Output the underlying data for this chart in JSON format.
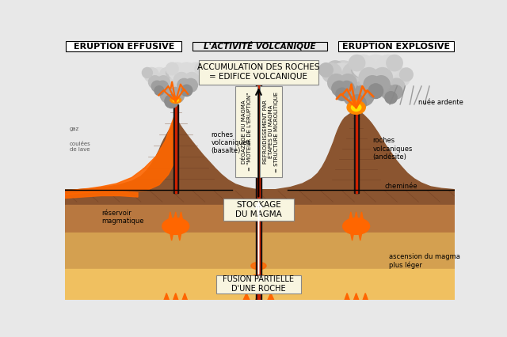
{
  "title": "L'ACTIVITÉ VOLCANIQUE",
  "title_left": "ERUPTION EFFUSIVE",
  "title_right": "ERUPTION EXPLOSIVE",
  "box_top": "ACCUMULATION DES ROCHES\n= EDIFICE VOLCANIQUE",
  "box_mid_left": "DÉGAZAGE DU MAGMA\n= \"MOTEUR DE L'ÉRUPTION\"",
  "box_mid_right": "REFROIDISSEMENT PAR\nÉTAPES DU MAGMA\n= STRUCTURE MICROLITIQUE",
  "box_stockage": "STOCKAGE\nDU MAGMA",
  "box_fusion": "FUSION PARTIELLE\nD'UNE ROCHE",
  "label_reservoir": "réservoir\nmagmatique",
  "label_roches_left": "roches\nvolcaniques\n(basalte)",
  "label_roches_right": "roches\nvolcaniques\n(andésite)",
  "label_cheminee": "cheminée",
  "label_nuee": "nuée ardente",
  "label_ascension": "ascension du magma\nplus léger",
  "label_coulees": "coulées\nde lave",
  "bg_sky": "#e8e8e8",
  "ground_surface": "#8B5530",
  "ground_mid": "#B87840",
  "ground_deep": "#D4A050",
  "ground_yellow": "#F0C060",
  "volcano_dark": "#6B3A1F",
  "volcano_med": "#8B5530",
  "volcano_light": "#A06535",
  "lava_orange": "#FF6600",
  "lava_bright": "#FF8C00",
  "box_bg": "#F8F5E0",
  "pipe_black": "#111111",
  "pipe_red": "#CC2200",
  "cloud_dark": "#AAAAAA",
  "cloud_mid": "#BBBBBB",
  "cloud_light": "#CCCCCC",
  "white": "#FFFFFF",
  "black": "#000000"
}
